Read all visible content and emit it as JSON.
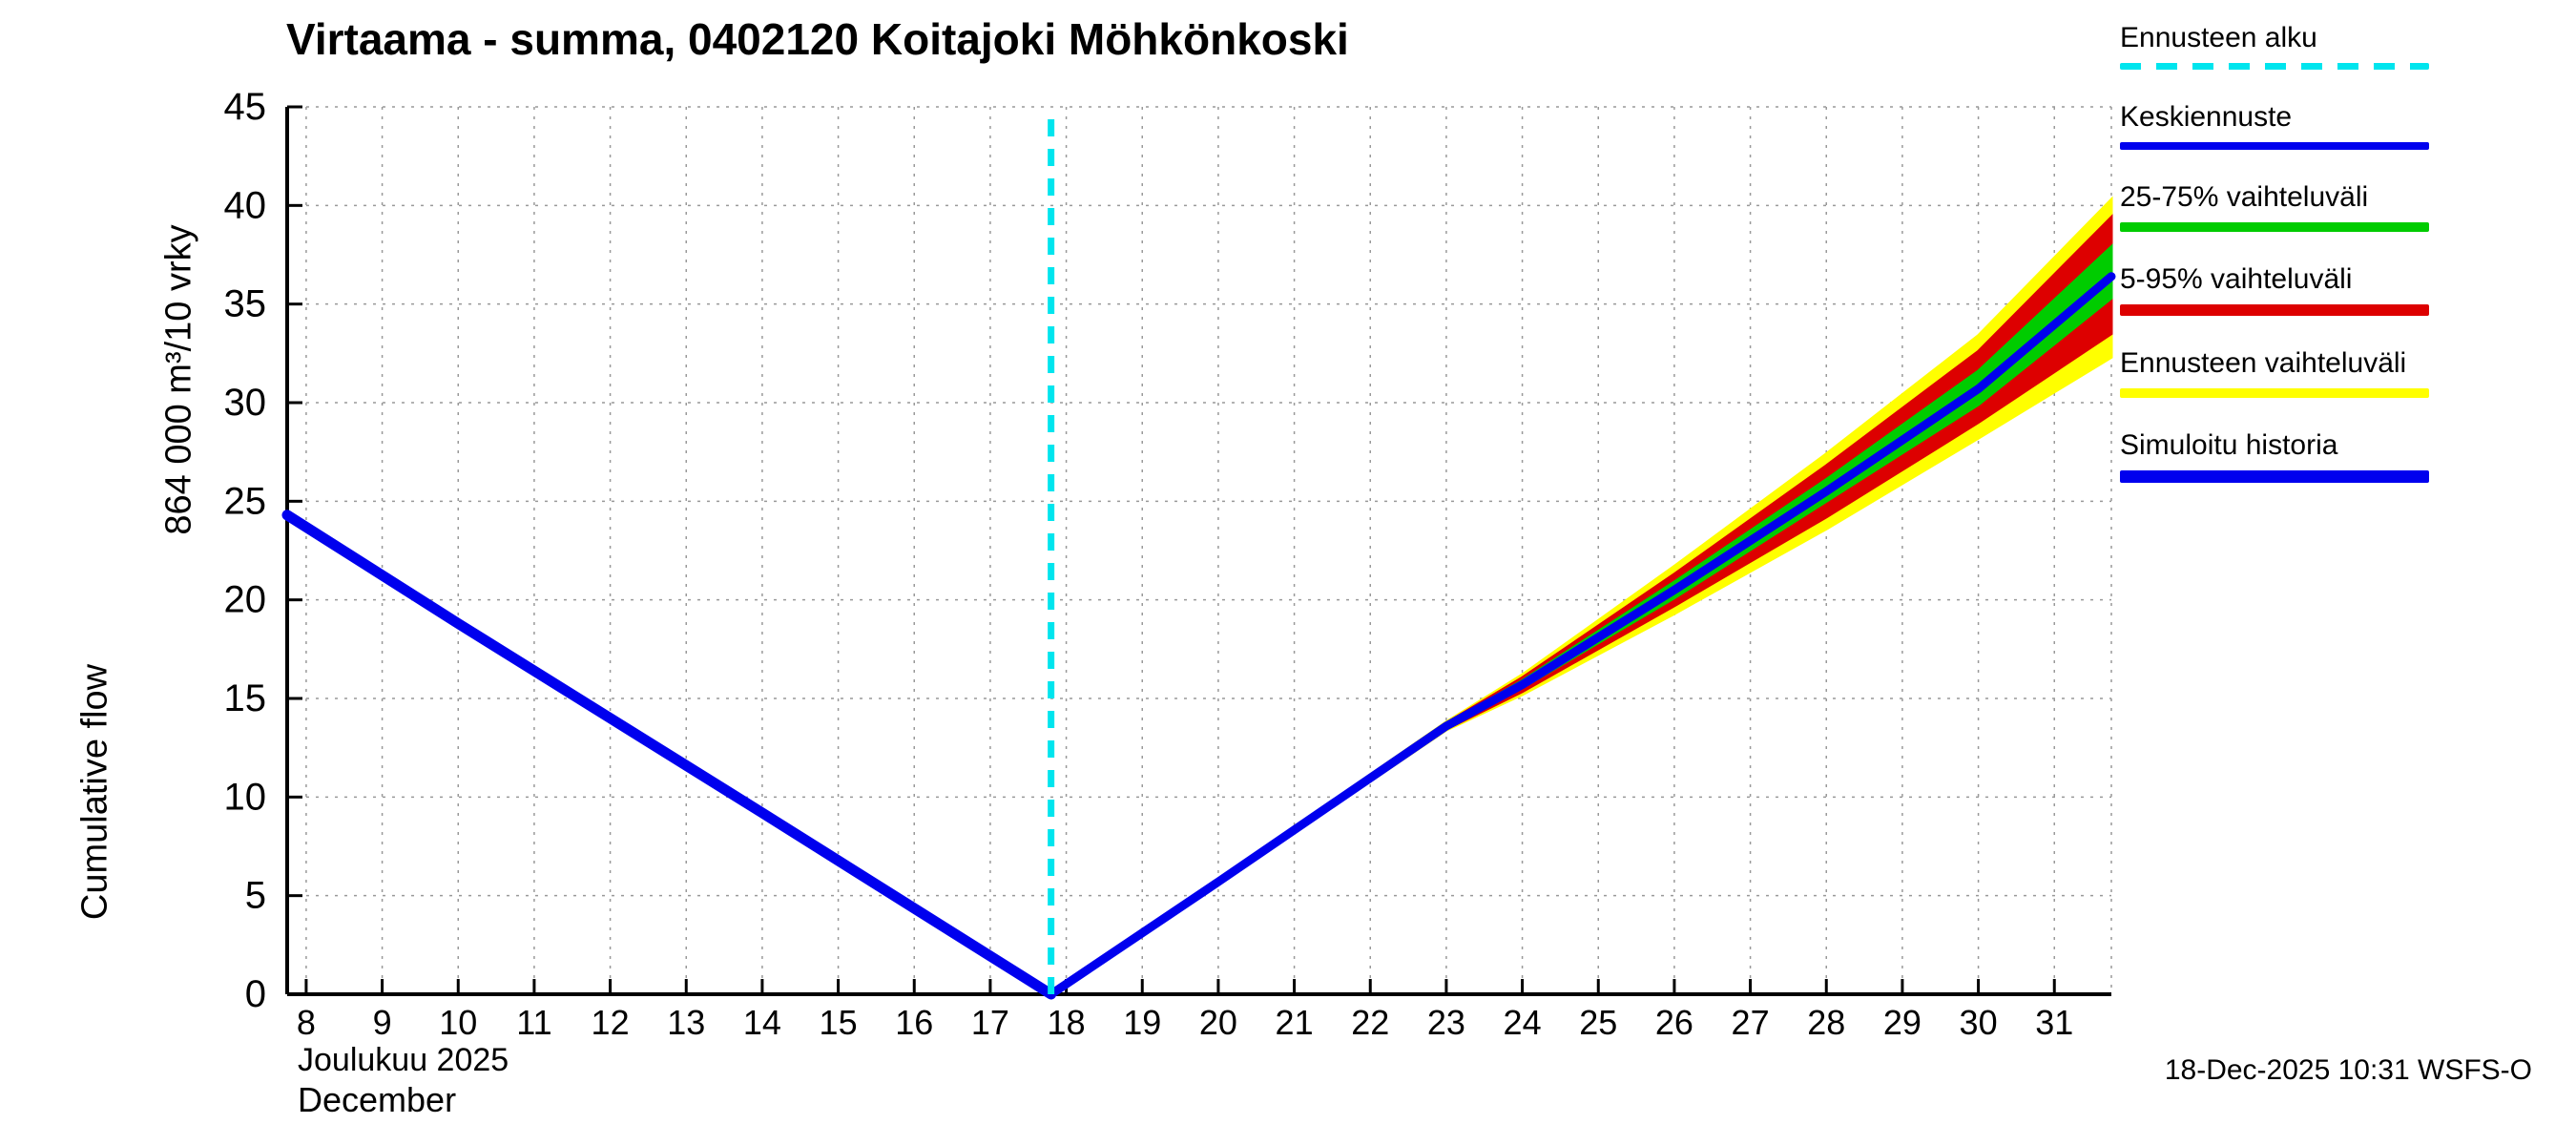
{
  "chart_data": {
    "type": "line",
    "title": "Virtaama - summa, 0402120 Koitajoki Möhkönkoski",
    "ylabel": "Cumulative flow",
    "ylabel_units": "864 000 m³/10 vrky",
    "xlabel": "Joulukuu 2025",
    "xlabel_en": "December",
    "x_domain": [
      7.75,
      31.75
    ],
    "y_domain": [
      0,
      45
    ],
    "x_ticks": [
      8,
      9,
      10,
      11,
      12,
      13,
      14,
      15,
      16,
      17,
      18,
      19,
      20,
      21,
      22,
      23,
      24,
      25,
      26,
      27,
      28,
      29,
      30,
      31
    ],
    "y_ticks": [
      0,
      5,
      10,
      15,
      20,
      25,
      30,
      35,
      40,
      45
    ],
    "grid": true,
    "forecast_start_x": 17.8,
    "history": {
      "name": "Simuloitu historia",
      "x": [
        7.75,
        10,
        14,
        17.8
      ],
      "y": [
        24.3,
        18.8,
        9.2,
        0
      ]
    },
    "forecast_x": [
      17.8,
      20,
      23,
      24,
      26,
      28,
      30,
      31.75
    ],
    "median": {
      "name": "Keskiennuste",
      "y": [
        0,
        5.7,
        13.6,
        15.7,
        20.5,
        25.5,
        30.7,
        36.4
      ]
    },
    "band_25_75": {
      "name": "25-75% vaihteluväli",
      "lower": [
        0,
        5.68,
        13.55,
        15.55,
        20.1,
        25.0,
        29.9,
        35.3
      ],
      "upper": [
        0,
        5.72,
        13.7,
        15.9,
        20.9,
        26.1,
        31.6,
        37.9
      ]
    },
    "band_5_95": {
      "name": "5-95% vaihteluväli",
      "lower": [
        0,
        5.65,
        13.45,
        15.35,
        19.7,
        24.2,
        29.0,
        33.5
      ],
      "upper": [
        0,
        5.75,
        13.75,
        16.05,
        21.3,
        26.8,
        32.6,
        39.4
      ]
    },
    "band_minmax": {
      "name": "Ennusteen vaihteluväli",
      "lower": [
        0,
        5.6,
        13.4,
        15.2,
        19.3,
        23.6,
        28.2,
        32.3
      ],
      "upper": [
        0,
        5.8,
        13.8,
        16.2,
        21.7,
        27.4,
        33.4,
        40.3
      ]
    },
    "colors": {
      "history": "#0000EE",
      "median": "#0000EE",
      "band_25_75": "#00CC00",
      "band_5_95": "#DD0000",
      "band_minmax": "#FFFF00",
      "forecast_start": "#00E5EE",
      "grid": "#999999",
      "axis": "#000000"
    },
    "legend_position": "top-right",
    "legend": [
      {
        "label": "Ennusteen alku",
        "color": "#00E5EE",
        "dash": true,
        "width": 7
      },
      {
        "label": "Keskiennuste",
        "color": "#0000EE",
        "dash": false,
        "width": 8
      },
      {
        "label": "25-75% vaihteluväli",
        "color": "#00CC00",
        "dash": false,
        "width": 10
      },
      {
        "label": "5-95% vaihteluväli",
        "color": "#DD0000",
        "dash": false,
        "width": 12
      },
      {
        "label": "Ennusteen vaihteluväli",
        "color": "#FFFF00",
        "dash": false,
        "width": 10
      },
      {
        "label": "Simuloitu historia",
        "color": "#0000EE",
        "dash": false,
        "width": 13
      }
    ]
  },
  "footer": {
    "text": "18-Dec-2025 10:31 WSFS-O"
  }
}
